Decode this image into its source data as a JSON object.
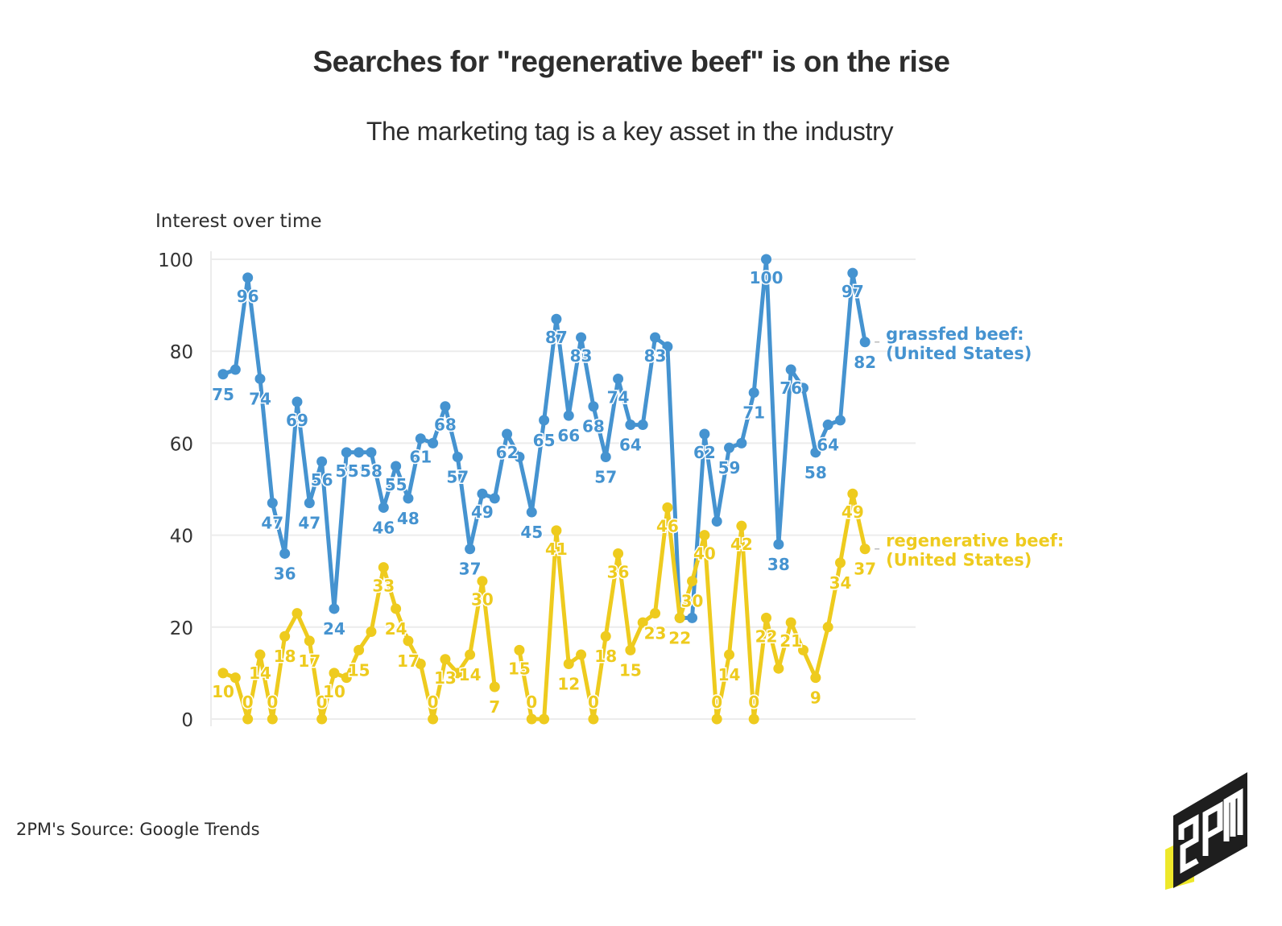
{
  "title": "Searches for \"regenerative beef\" is on the rise",
  "subtitle": "The marketing tag is a key asset in the industry",
  "source": "2PM's Source: Google Trends",
  "logo": {
    "text": "2PM",
    "icon": "2pm-logo-icon"
  },
  "colors": {
    "grassfed": "#4593d0",
    "regenerative": "#eecb1e",
    "grid": "#ececec",
    "text": "#2d2d2d"
  },
  "chart_data": {
    "type": "line",
    "title": "Interest over time",
    "xlabel": "",
    "ylabel": "Interest over time",
    "ylim": [
      0,
      100
    ],
    "yticks": [
      0,
      20,
      40,
      60,
      80,
      100
    ],
    "grid": true,
    "legend": "right (end-of-line labels)",
    "x": [
      1,
      2,
      3,
      4,
      5,
      6,
      7,
      8,
      9,
      10,
      11,
      12,
      13,
      14,
      15,
      16,
      17,
      18,
      19,
      20,
      21,
      22,
      23,
      24,
      25,
      26,
      27,
      28,
      29,
      30,
      31,
      32,
      33,
      34,
      35,
      36,
      37,
      38,
      39,
      40,
      41,
      42,
      43,
      44,
      45,
      46,
      47,
      48,
      49,
      50,
      51,
      52,
      53
    ],
    "series": [
      {
        "name": "grassfed beef: (United States)",
        "label_lines": [
          "grassfed beef:",
          "(United States)"
        ],
        "color": "#4593d0",
        "values": [
          75,
          76,
          96,
          74,
          47,
          36,
          69,
          47,
          56,
          24,
          58,
          58,
          58,
          46,
          55,
          48,
          61,
          60,
          68,
          57,
          37,
          49,
          48,
          62,
          57,
          45,
          65,
          87,
          66,
          83,
          68,
          57,
          74,
          64,
          64,
          83,
          81,
          22,
          22,
          62,
          43,
          59,
          60,
          71,
          100,
          38,
          76,
          72,
          58,
          64,
          65,
          97,
          82
        ],
        "labeled": [
          1,
          0,
          1,
          1,
          1,
          1,
          1,
          1,
          1,
          1,
          1,
          1,
          1,
          1,
          1,
          1,
          1,
          0,
          1,
          1,
          1,
          1,
          0,
          1,
          0,
          1,
          1,
          1,
          1,
          1,
          1,
          1,
          1,
          1,
          0,
          1,
          0,
          0,
          0,
          1,
          0,
          1,
          0,
          1,
          1,
          1,
          1,
          0,
          1,
          1,
          0,
          1,
          1
        ]
      },
      {
        "name": "regenerative beef: (United States)",
        "label_lines": [
          "regenerative beef:",
          "(United States)"
        ],
        "color": "#eecb1e",
        "values": [
          10,
          9,
          0,
          14,
          0,
          18,
          23,
          17,
          0,
          10,
          9,
          15,
          19,
          33,
          24,
          17,
          12,
          0,
          13,
          10,
          14,
          30,
          7,
          null,
          15,
          0,
          0,
          41,
          12,
          14,
          0,
          18,
          36,
          15,
          21,
          23,
          46,
          22,
          30,
          40,
          0,
          14,
          42,
          0,
          22,
          11,
          21,
          15,
          9,
          20,
          34,
          49,
          37
        ],
        "labeled": [
          1,
          0,
          1,
          1,
          1,
          1,
          0,
          1,
          1,
          1,
          0,
          1,
          0,
          1,
          1,
          1,
          0,
          1,
          1,
          0,
          1,
          1,
          1,
          0,
          1,
          1,
          0,
          1,
          1,
          0,
          1,
          1,
          1,
          1,
          0,
          1,
          1,
          1,
          1,
          1,
          1,
          1,
          1,
          1,
          1,
          0,
          1,
          0,
          1,
          0,
          1,
          1,
          1
        ]
      }
    ]
  }
}
